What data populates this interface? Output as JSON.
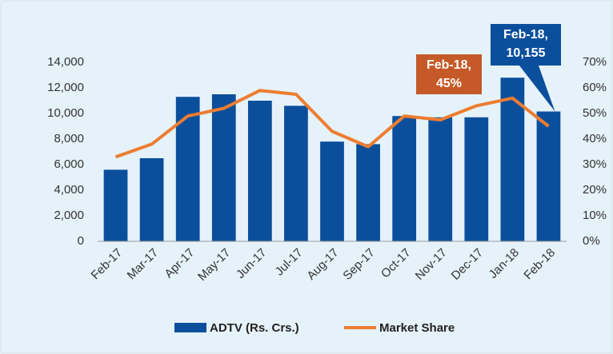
{
  "chart_data": {
    "type": "bar_line",
    "categories": [
      "Feb-17",
      "Mar-17",
      "Apr-17",
      "May-17",
      "Jun-17",
      "Jul-17",
      "Aug-17",
      "Sep-17",
      "Oct-17",
      "Nov-17",
      "Dec-17",
      "Jan-18",
      "Feb-18"
    ],
    "series": [
      {
        "name": "ADTV (Rs. Crs.)",
        "color": "#0b4f9c",
        "type": "bar",
        "values": [
          5600,
          6500,
          11300,
          11500,
          11000,
          10600,
          7800,
          7600,
          9800,
          9700,
          9700,
          12800,
          10155
        ]
      },
      {
        "name": "Market Share",
        "color": "#ed7d31",
        "type": "line",
        "axis": "y2",
        "values": [
          33,
          38,
          49,
          52,
          59,
          57.5,
          43,
          37,
          49,
          47.5,
          53,
          56,
          45
        ]
      }
    ],
    "ylim": [
      0,
      14000
    ],
    "yticks": [
      0,
      {
        "value": 2000,
        "label": "2,000"
      },
      {
        "value": 4000,
        "label": "4,000"
      },
      {
        "value": 6000,
        "label": "6,000"
      },
      {
        "value": 8000,
        "label": "8,000"
      },
      {
        "value": 10000,
        "label": "10,000"
      },
      {
        "value": 12000,
        "label": "12,000"
      },
      {
        "value": 14000,
        "label": "14,000"
      }
    ],
    "y2lim": [
      0,
      70
    ],
    "y2ticks": [
      {
        "value": 0,
        "label": "0%"
      },
      {
        "value": 10,
        "label": "10%"
      },
      {
        "value": 20,
        "label": "20%"
      },
      {
        "value": 30,
        "label": "30%"
      },
      {
        "value": 40,
        "label": "40%"
      },
      {
        "value": 50,
        "label": "50%"
      },
      {
        "value": 60,
        "label": "60%"
      },
      {
        "value": 70,
        "label": "70%"
      }
    ],
    "annotations": [
      {
        "lines": [
          "Feb-18,",
          "10,155"
        ],
        "color": "#0b4f9c"
      },
      {
        "lines": [
          "Feb-18,",
          "45%"
        ],
        "color": "#c55a28"
      }
    ],
    "legend": "bottom"
  }
}
